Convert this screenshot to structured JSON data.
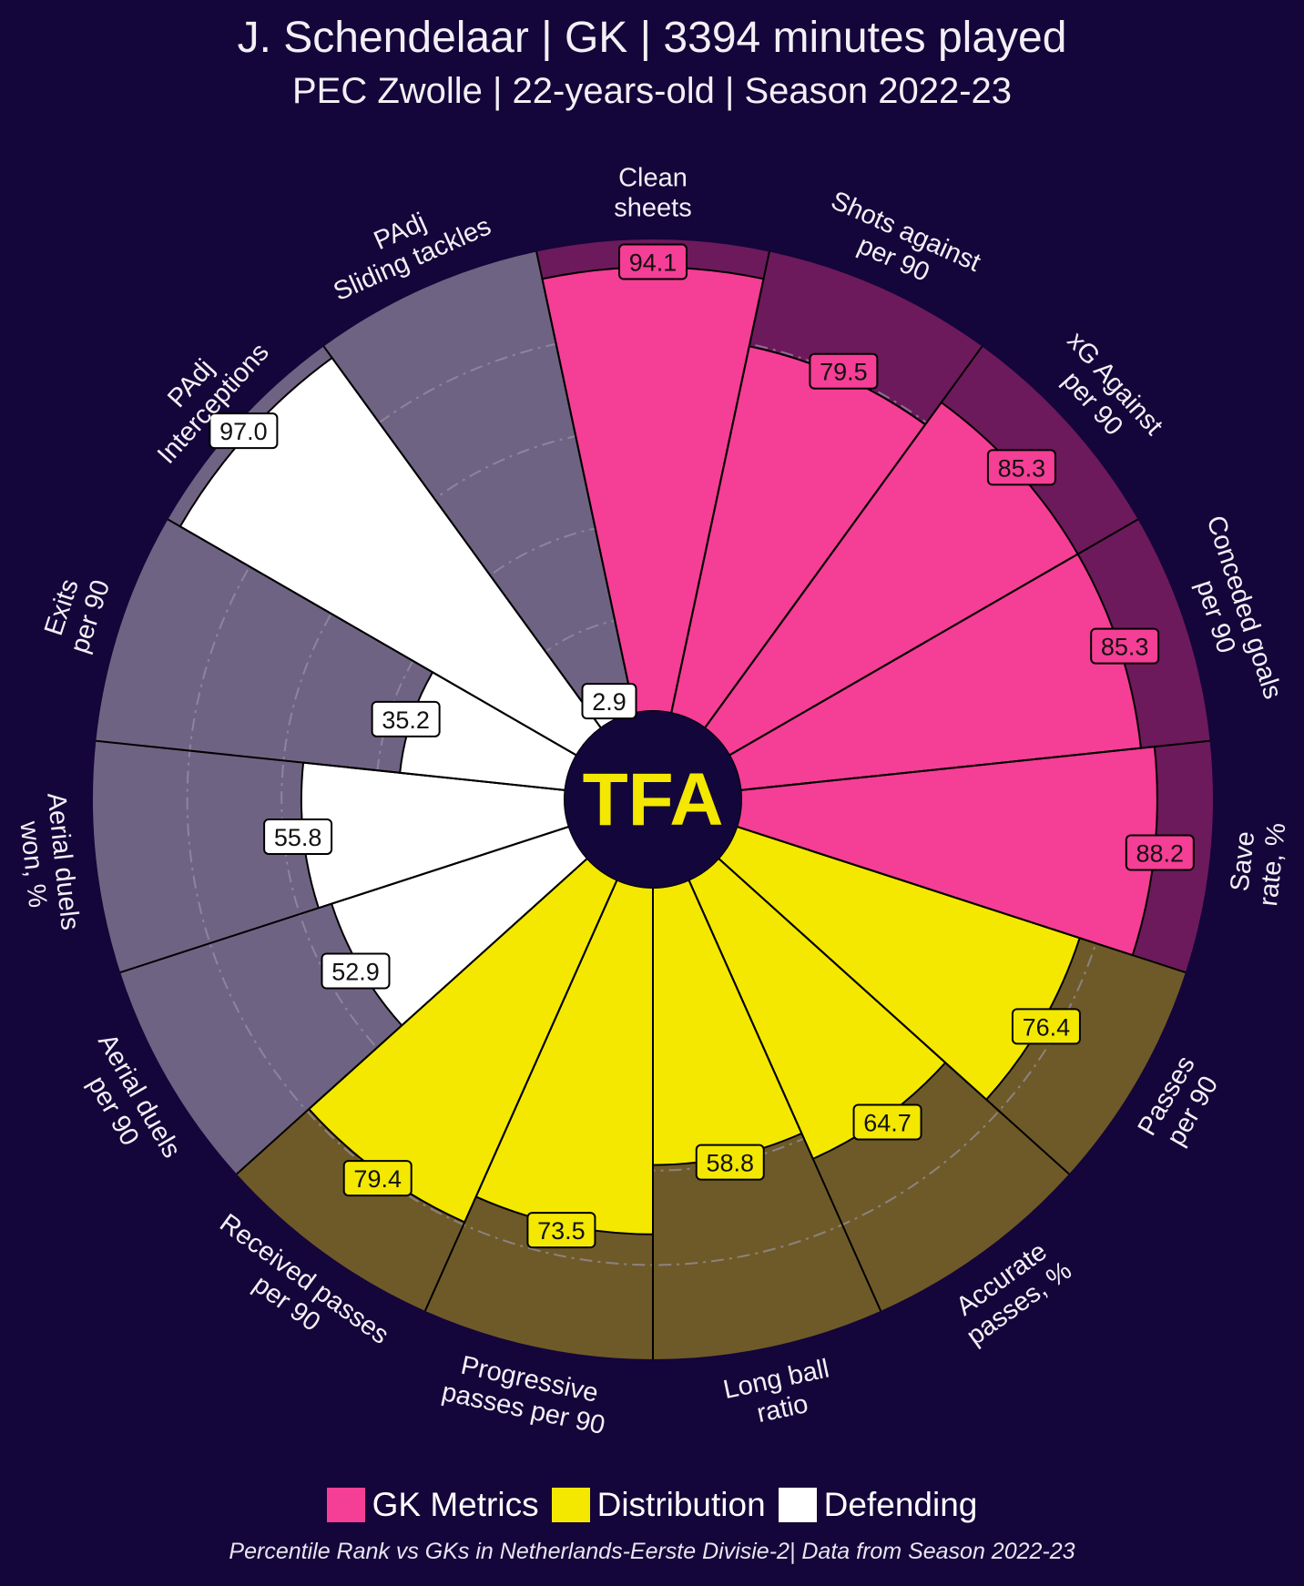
{
  "header": {
    "title": "J. Schendelaar | GK | 3394 minutes played",
    "subtitle": "PEC Zwolle | 22-years-old | Season 2022-23"
  },
  "logo": "TFA",
  "legend": [
    {
      "label": "GK Metrics",
      "color": "#f53e95"
    },
    {
      "label": "Distribution",
      "color": "#f4e800"
    },
    {
      "label": "Defending",
      "color": "#ffffff"
    }
  ],
  "footnote": "Percentile Rank vs GKs in Netherlands-Eerste Divisie-2| Data from Season 2022-23",
  "chart_data": {
    "type": "pizza",
    "title": "J. Schendelaar | GK | 3394 minutes played",
    "range": [
      0,
      100
    ],
    "gridlines": [
      20,
      40,
      60,
      80
    ],
    "category_colors": {
      "GK Metrics": {
        "fill": "#f53e95",
        "background": "#6c1a5c"
      },
      "Distribution": {
        "fill": "#f4e800",
        "background": "#6e5a28"
      },
      "Defending": {
        "fill": "#ffffff",
        "background": "#6f6383"
      }
    },
    "metrics": [
      {
        "label": [
          "Clean",
          "sheets"
        ],
        "value": "94.1",
        "category": "GK Metrics"
      },
      {
        "label": [
          "Shots against",
          "per 90"
        ],
        "value": "79.5",
        "category": "GK Metrics"
      },
      {
        "label": [
          "xG Against",
          "per 90"
        ],
        "value": "85.3",
        "category": "GK Metrics"
      },
      {
        "label": [
          "Conceded goals",
          "per 90"
        ],
        "value": "85.3",
        "category": "GK Metrics"
      },
      {
        "label": [
          "Save",
          "rate, %"
        ],
        "value": "88.2",
        "category": "GK Metrics"
      },
      {
        "label": [
          "Passes",
          "per 90"
        ],
        "value": "76.4",
        "category": "Distribution"
      },
      {
        "label": [
          "Accurate",
          "passes, %"
        ],
        "value": "64.7",
        "category": "Distribution"
      },
      {
        "label": [
          "Long ball",
          "ratio"
        ],
        "value": "58.8",
        "category": "Distribution"
      },
      {
        "label": [
          "Progressive",
          "passes per 90"
        ],
        "value": "73.5",
        "category": "Distribution"
      },
      {
        "label": [
          "Received passes",
          "per 90"
        ],
        "value": "79.4",
        "category": "Distribution"
      },
      {
        "label": [
          "Aerial duels",
          "per 90"
        ],
        "value": "52.9",
        "category": "Defending"
      },
      {
        "label": [
          "Aerial duels",
          "won, %"
        ],
        "value": "55.8",
        "category": "Defending"
      },
      {
        "label": [
          "Exits",
          "per 90"
        ],
        "value": "35.2",
        "category": "Defending"
      },
      {
        "label": [
          "PAdj",
          "Interceptions"
        ],
        "value": "97.0",
        "category": "Defending"
      },
      {
        "label": [
          "PAdj",
          "Sliding tackles"
        ],
        "value": "2.9",
        "category": "Defending"
      }
    ]
  }
}
